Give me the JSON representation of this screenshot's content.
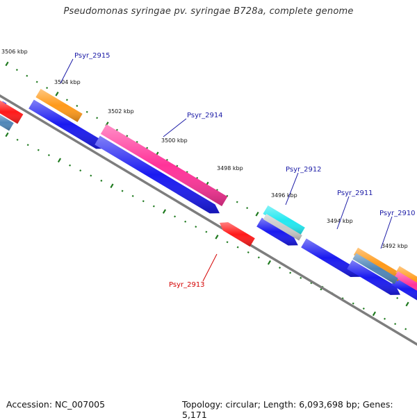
{
  "title": "Pseudomonas syringae pv. syringae B728a, complete genome",
  "footer": {
    "accession": "Accession: NC_007005",
    "summary": "Topology: circular; Length: 6,093,698 bp; Genes: 5,171"
  },
  "colors": {
    "backbone": "#7d7d7d",
    "tick": "#1f7a1f",
    "forward_label": "#1a1aa6",
    "reverse_label": "#d40000"
  },
  "tick_labels": [
    "3506 kbp",
    "3504 kbp",
    "3502 kbp",
    "3500 kbp",
    "3498 kbp",
    "3496 kbp",
    "3494 kbp",
    "3492 kbp"
  ],
  "features": [
    {
      "type": "gene",
      "color": "#1a1af0",
      "strand": 1
    },
    {
      "type": "gene",
      "color": "#1a1af0",
      "strand": 1
    },
    {
      "type": "gene",
      "color": "#1a1af0",
      "strand": 1
    },
    {
      "type": "gene",
      "color": "#1a1af0",
      "strand": 1
    },
    {
      "type": "gene",
      "color": "#1a1af0",
      "strand": 1
    },
    {
      "type": "gene",
      "color": "#1a1af0",
      "strand": 1
    },
    {
      "type": "gene",
      "color": "#1a1af0",
      "strand": 1
    },
    {
      "type": "cds",
      "color": "#ff9a1a",
      "strand": 1
    },
    {
      "type": "cds",
      "color": "#ff3399",
      "strand": 1
    },
    {
      "type": "cds",
      "color": "#22e8f0",
      "strand": 1
    },
    {
      "type": "cds",
      "color": "#ff9a1a",
      "strand": 1
    },
    {
      "type": "cds",
      "color": "#ff9a1a",
      "strand": 1
    },
    {
      "type": "cds",
      "color": "#ff3399",
      "strand": 1
    },
    {
      "type": "cds",
      "color": "#ff1a1a",
      "strand": -1
    },
    {
      "type": "cds",
      "color": "#ff1a1a",
      "strand": 1
    },
    {
      "type": "cds",
      "color": "#4f86b8",
      "strand": 1
    },
    {
      "type": "cds",
      "color": "#4f86b8",
      "strand": 1
    },
    {
      "type": "misc",
      "color": "#c8c8c8",
      "strand": 1
    }
  ],
  "gene_labels": [
    {
      "text": "Psyr_2915",
      "strand": "forward"
    },
    {
      "text": "Psyr_2914",
      "strand": "forward"
    },
    {
      "text": "Psyr_2912",
      "strand": "forward"
    },
    {
      "text": "Psyr_2911",
      "strand": "forward"
    },
    {
      "text": "Psyr_2910",
      "strand": "forward"
    },
    {
      "text": "Psyr_2913",
      "strand": "reverse"
    }
  ]
}
